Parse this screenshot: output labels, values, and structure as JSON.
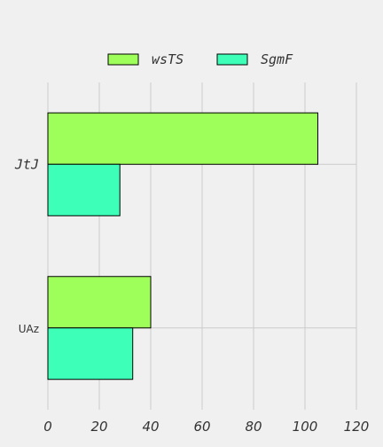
{
  "chart_data": {
    "type": "bar",
    "orientation": "horizontal",
    "categories": [
      "JtJ",
      "UAz"
    ],
    "series": [
      {
        "name": "wsTS",
        "values": [
          105,
          40
        ],
        "color": "#9fff5a"
      },
      {
        "name": "SgmF",
        "values": [
          28,
          33
        ],
        "color": "#3dffb8"
      }
    ],
    "xlim": [
      0,
      120
    ],
    "xticks": [
      "0",
      "20",
      "40",
      "60",
      "80",
      "100",
      "120"
    ],
    "grid": true,
    "legend": "top-center",
    "background": "#f0f0f0",
    "grid_color": "#cbcbcb"
  }
}
